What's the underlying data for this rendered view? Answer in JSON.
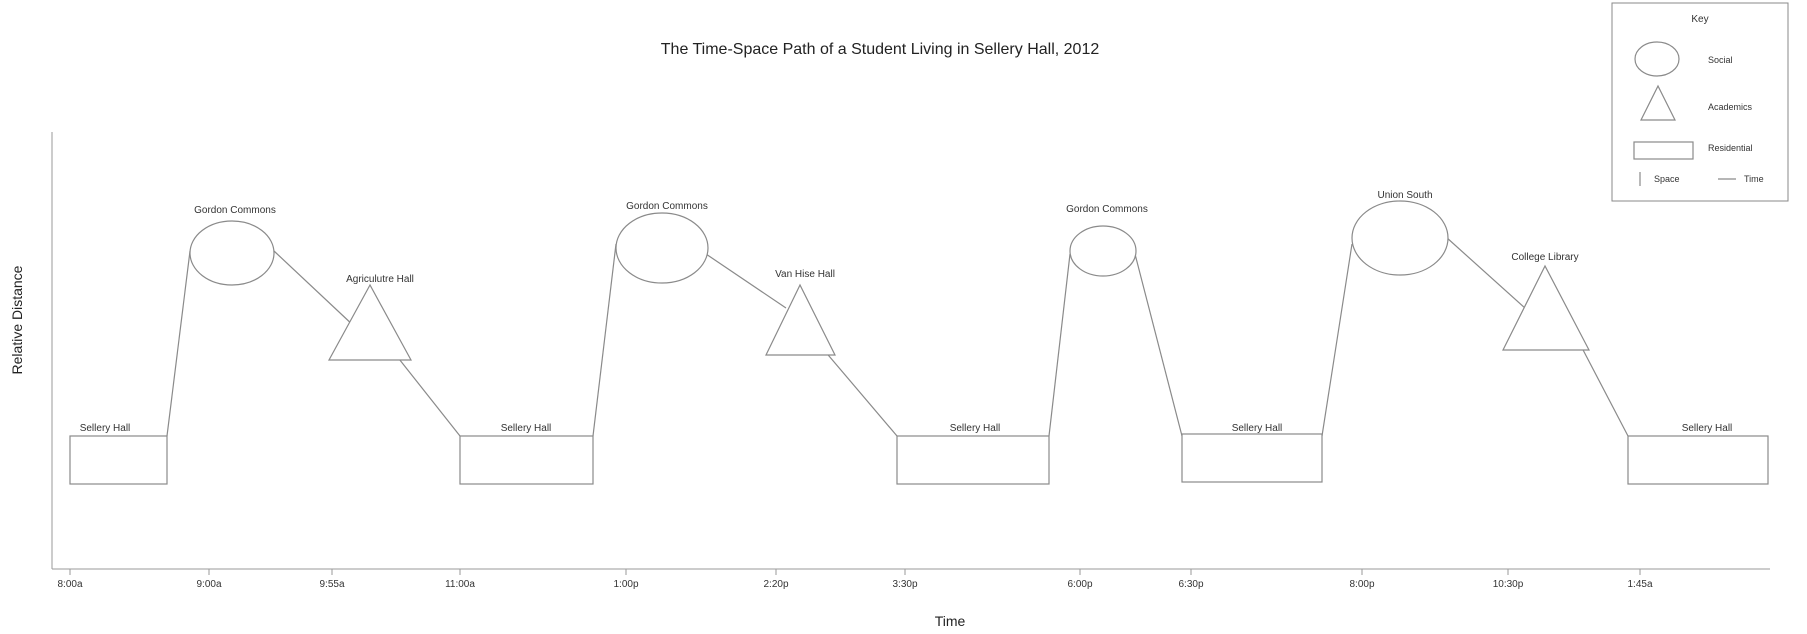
{
  "title": "The Time-Space Path of a Student Living in Sellery Hall, 2012",
  "y_axis_label": "Relative Distance",
  "x_axis_label": "Time",
  "time_ticks": [
    "8:00a",
    "9:00a",
    "9:55a",
    "11:00a",
    "1:00p",
    "2:20p",
    "3:30p",
    "6:00p",
    "6:30p",
    "8:00p",
    "10:30p",
    "1:45a"
  ],
  "locations": [
    {
      "label": "Sellery Hall",
      "category": "residential"
    },
    {
      "label": "Gordon Commons",
      "category": "social"
    },
    {
      "label": "Agriculutre Hall",
      "category": "academics"
    },
    {
      "label": "Sellery Hall",
      "category": "residential"
    },
    {
      "label": "Gordon Commons",
      "category": "social"
    },
    {
      "label": "Van Hise Hall",
      "category": "academics"
    },
    {
      "label": "Sellery Hall",
      "category": "residential"
    },
    {
      "label": "Gordon Commons",
      "category": "social"
    },
    {
      "label": "Sellery Hall",
      "category": "residential"
    },
    {
      "label": "Union South",
      "category": "social"
    },
    {
      "label": "College Library",
      "category": "academics"
    },
    {
      "label": "Sellery Hall",
      "category": "residential"
    }
  ],
  "key": {
    "title": "Key",
    "items": [
      {
        "label": "Social",
        "shape": "ellipse"
      },
      {
        "label": "Academics",
        "shape": "triangle"
      },
      {
        "label": "Residential",
        "shape": "rectangle"
      }
    ],
    "space_label": "Space",
    "time_label": "Time"
  },
  "colors": {
    "stroke": "#8a8a8a",
    "text": "#222222",
    "background": "#ffffff"
  }
}
